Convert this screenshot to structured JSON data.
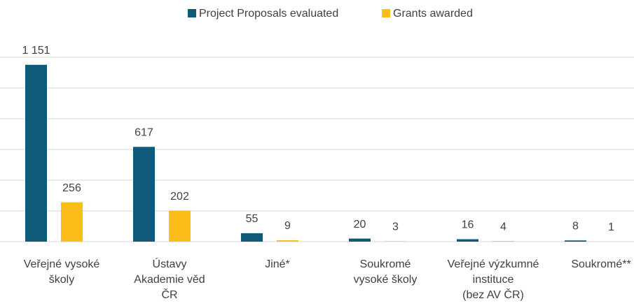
{
  "chart_data": {
    "type": "bar",
    "categories": [
      "Veřejné vysoké\nškoly",
      "Ústavy\nAkademie věd\nČR",
      "Jiné*",
      "Soukromé\nvysoké školy",
      "Veřejné výzkumné\ninstituce\n(bez AV ČR)",
      "Soukromé**"
    ],
    "series": [
      {
        "name": "Project Proposals evaluated",
        "color": "#0f5a78",
        "values": [
          1151,
          617,
          55,
          20,
          16,
          8
        ],
        "value_labels": [
          "1 151",
          "617",
          "55",
          "20",
          "16",
          "8"
        ]
      },
      {
        "name": "Grants awarded",
        "color": "#fcbd1b",
        "values": [
          256,
          202,
          9,
          3,
          4,
          1
        ]
      }
    ],
    "ylim": [
      0,
      1200
    ],
    "yticks": [
      0,
      200,
      400,
      600,
      800,
      1000,
      1200
    ],
    "grid": true,
    "legend": "top"
  }
}
